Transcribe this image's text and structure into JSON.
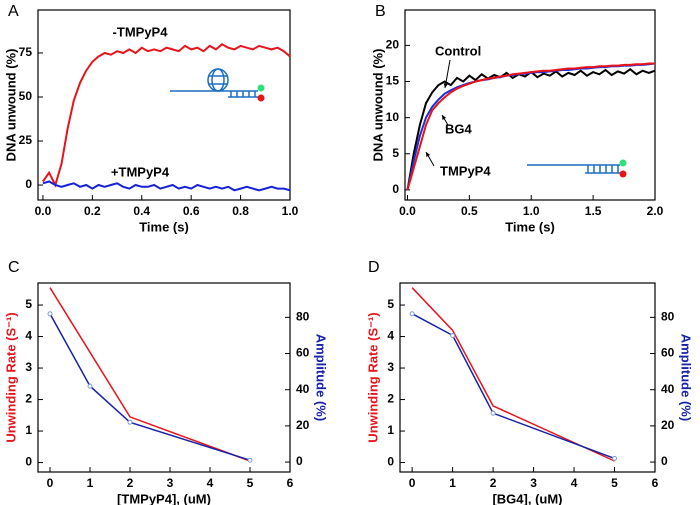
{
  "chart_data": [
    {
      "panel": "A",
      "type": "line",
      "x_label": "Time (s)",
      "y_label": "DNA unwound (%)",
      "xlim": [
        -0.02,
        1.0
      ],
      "ylim": [
        -8.5,
        99.4
      ],
      "xticks": [
        {
          "value": 0,
          "label": "0.0"
        },
        {
          "value": 0.2,
          "label": "0.2"
        },
        {
          "value": 0.4,
          "label": "0.4"
        },
        {
          "value": 0.6,
          "label": "0.6"
        },
        {
          "value": 0.8,
          "label": "0.8"
        },
        {
          "value": 1,
          "label": "1.0"
        }
      ],
      "yticks": [
        0,
        25,
        50,
        75
      ],
      "x": [
        0,
        0.025,
        0.05,
        0.075,
        0.1,
        0.125,
        0.15,
        0.175,
        0.2,
        0.225,
        0.25,
        0.275,
        0.3,
        0.325,
        0.35,
        0.375,
        0.4,
        0.425,
        0.45,
        0.475,
        0.5,
        0.525,
        0.55,
        0.575,
        0.6,
        0.625,
        0.65,
        0.675,
        0.7,
        0.725,
        0.75,
        0.775,
        0.8,
        0.825,
        0.85,
        0.875,
        0.9,
        0.925,
        0.95,
        0.975,
        1.0
      ],
      "series": [
        {
          "name": "-TMPyP4",
          "color": "#e8141b",
          "values": [
            2,
            7,
            0,
            12,
            32,
            48,
            58,
            65,
            70,
            73,
            75,
            74,
            76,
            75,
            77,
            75,
            78,
            76,
            77,
            76,
            78,
            77,
            76,
            79,
            77,
            78,
            76,
            79,
            77,
            80,
            78,
            77,
            79,
            78,
            77,
            79,
            78,
            77,
            78,
            76,
            73
          ]
        },
        {
          "name": "+TMPyP4",
          "color": "#1622d8",
          "values": [
            1,
            2,
            0,
            -1,
            0,
            1,
            -1,
            0,
            -2,
            0,
            -1,
            0,
            1,
            -1,
            -2,
            0,
            -1,
            -1,
            0,
            -2,
            -1,
            0,
            -2,
            -1,
            -2,
            0,
            -1,
            -2,
            -1,
            -2,
            -1,
            -3,
            -2,
            -1,
            -2,
            -3,
            -2,
            -1,
            -2,
            -2,
            -3
          ]
        }
      ]
    },
    {
      "panel": "B",
      "type": "line",
      "x_label": "Time (s)",
      "y_label": "DNA unwound (%)",
      "xlim": [
        -0.02,
        2.0
      ],
      "ylim": [
        -1.4,
        24.9
      ],
      "xticks": [
        {
          "value": 0,
          "label": "0.0"
        },
        {
          "value": 0.5,
          "label": "0.5"
        },
        {
          "value": 1,
          "label": "1.0"
        },
        {
          "value": 1.5,
          "label": "1.5"
        },
        {
          "value": 2,
          "label": "2.0"
        }
      ],
      "yticks": [
        0,
        5,
        10,
        15,
        20
      ],
      "x": [
        0,
        0.05,
        0.1,
        0.15,
        0.2,
        0.25,
        0.3,
        0.35,
        0.4,
        0.45,
        0.5,
        0.55,
        0.6,
        0.65,
        0.7,
        0.75,
        0.8,
        0.85,
        0.9,
        0.95,
        1.0,
        1.05,
        1.1,
        1.15,
        1.2,
        1.25,
        1.3,
        1.35,
        1.4,
        1.45,
        1.5,
        1.55,
        1.6,
        1.65,
        1.7,
        1.75,
        1.8,
        1.85,
        1.9,
        1.95,
        2.0
      ],
      "series": [
        {
          "name": "Control",
          "color": "#000000",
          "values": [
            0,
            5,
            9,
            12,
            13.5,
            14.5,
            15,
            14.5,
            15.5,
            15,
            15.8,
            15.2,
            16,
            15.4,
            15.9,
            15.6,
            16.2,
            15.5,
            16,
            15.7,
            16.3,
            15.6,
            16.1,
            15.8,
            16.4,
            15.7,
            16.2,
            15.9,
            16.5,
            15.8,
            16.3,
            16,
            16.6,
            15.9,
            16.4,
            16.1,
            16.7,
            16,
            16.5,
            16.2,
            16.5
          ]
        },
        {
          "name": "BG4",
          "color": "#1f2fd6",
          "values": [
            0,
            4,
            7.5,
            10,
            11.5,
            12.5,
            13.3,
            13.8,
            14.2,
            14.5,
            14.8,
            15,
            15.2,
            15.3,
            15.5,
            15.6,
            15.8,
            15.9,
            16,
            16.1,
            16.2,
            16.3,
            16.3,
            16.4,
            16.5,
            16.6,
            16.6,
            16.7,
            16.8,
            16.8,
            16.9,
            17,
            17,
            17.1,
            17.1,
            17.2,
            17.2,
            17.3,
            17.3,
            17.4,
            17.5
          ]
        },
        {
          "name": "TMPyP4",
          "color": "#e8141b",
          "values": [
            0,
            3,
            6,
            9,
            11,
            12,
            12.8,
            13.5,
            14,
            14.4,
            14.7,
            15,
            15.2,
            15.4,
            15.5,
            15.7,
            15.8,
            16,
            16.1,
            16.2,
            16.3,
            16.4,
            16.5,
            16.5,
            16.6,
            16.7,
            16.8,
            16.8,
            16.9,
            17,
            17,
            17.1,
            17.1,
            17.2,
            17.2,
            17.3,
            17.3,
            17.4,
            17.4,
            17.5,
            17.5
          ]
        }
      ]
    },
    {
      "panel": "C",
      "type": "line",
      "x_label": "[TMPyP4], (uM)",
      "y_label": "Unwinding Rate (S⁻¹)",
      "y2_label": "Amplitude (%)",
      "xlim": [
        -0.3,
        6
      ],
      "ylim": [
        -0.3,
        5.7
      ],
      "y2lim": [
        -5.5,
        99
      ],
      "xticks": [
        0,
        1,
        2,
        3,
        4,
        5,
        6
      ],
      "yticks": [
        0,
        1,
        2,
        3,
        4,
        5
      ],
      "y2ticks": [
        0,
        20,
        40,
        60,
        80
      ],
      "x": [
        0,
        1,
        2,
        5
      ],
      "series": [
        {
          "color": "#e8141b",
          "values": [
            5.55,
            3.5,
            1.45,
            0.05
          ]
        },
        {
          "color": "#1622a8",
          "axis": "y2",
          "values": [
            82,
            42,
            22,
            1
          ]
        }
      ]
    },
    {
      "panel": "D",
      "type": "line",
      "x_label": "[BG4], (uM)",
      "y_label": "Unwinding Rate (S⁻¹)",
      "y2_label": "Amplitude (%)",
      "xlim": [
        -0.3,
        6
      ],
      "ylim": [
        -0.3,
        5.7
      ],
      "y2lim": [
        -5.5,
        99
      ],
      "xticks": [
        0,
        1,
        2,
        3,
        4,
        5,
        6
      ],
      "yticks": [
        0,
        1,
        2,
        3,
        4,
        5
      ],
      "y2ticks": [
        0,
        20,
        40,
        60,
        80
      ],
      "x": [
        0,
        1,
        2,
        5
      ],
      "series": [
        {
          "color": "#e8141b",
          "values": [
            5.55,
            4.2,
            1.8,
            0.05
          ]
        },
        {
          "color": "#1622a8",
          "axis": "y2",
          "values": [
            82,
            70,
            27,
            2
          ]
        }
      ]
    }
  ]
}
